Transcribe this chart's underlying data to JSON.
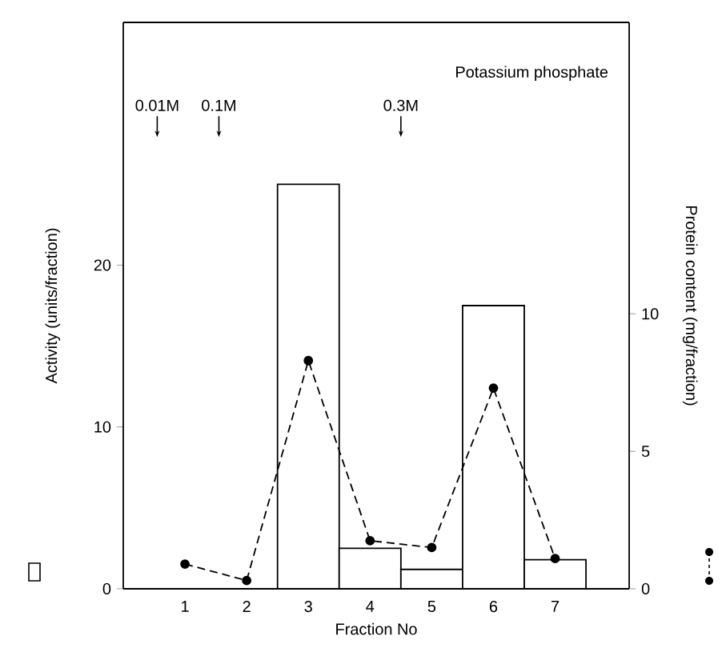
{
  "chart_data": {
    "type": "bar",
    "xlabel": "Fraction No",
    "ylabel": "Activity (units/fraction)",
    "y2label": "Protein content (mg/fraction)",
    "x": [
      1,
      2,
      3,
      4,
      5,
      6,
      7
    ],
    "xlim": [
      0,
      8.2
    ],
    "xticks": [
      1,
      2,
      3,
      4,
      5,
      6,
      7
    ],
    "ylim": [
      0,
      35
    ],
    "yticks": [
      0,
      10,
      20
    ],
    "y2lim": [
      0,
      20.6
    ],
    "y2ticks": [
      0,
      5,
      10
    ],
    "series": [
      {
        "color": "#000000",
        "values": [
          0,
          0,
          25,
          2.5,
          1.2,
          17.5,
          1.8
        ]
      },
      {
        "type": "line",
        "axis": "y2",
        "color": "#000000",
        "marker": "circle",
        "line_style": "dashed",
        "values": [
          0.9,
          0.3,
          8.3,
          1.75,
          1.5,
          7.3,
          1.1
        ]
      }
    ],
    "annotations": [
      "Potassium phosphate",
      "0.01M",
      "0.1M",
      "0.3M"
    ]
  }
}
